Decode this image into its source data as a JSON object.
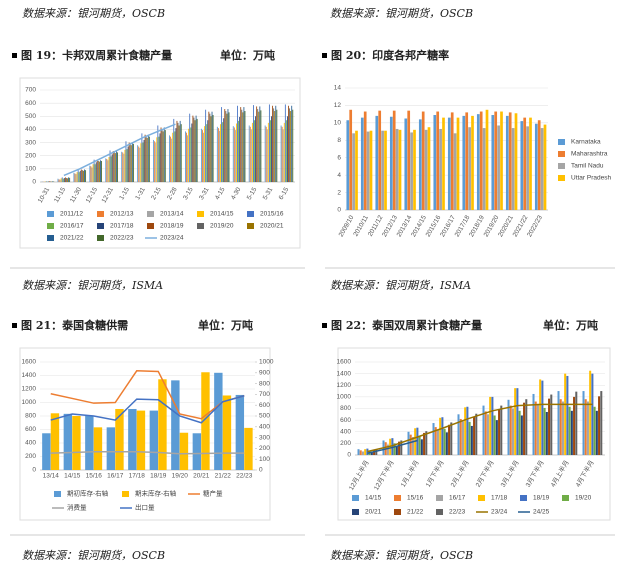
{
  "sources": [
    "数据来源：银河期货，OSCB",
    "数据来源：银河期货，OSCB",
    "数据来源：银河期货，ISMA",
    "数据来源：银河期货，ISMA",
    "数据来源：银河期货，OSCB",
    "数据来源：银河期货，OSCB"
  ],
  "figures": [
    {
      "title": "图 19：卡邦双周累计食糖产量",
      "unit": "单位：万吨"
    },
    {
      "title": "图 20：印度各邦产糖率"
    },
    {
      "title": "图 21：泰国食糖供需",
      "unit": "单位：万吨"
    },
    {
      "title": "图 22：泰国双周累计食糖产量",
      "unit": "单位：万吨"
    }
  ],
  "chart_data": [
    {
      "type": "bar",
      "categories": [
        "10-31",
        "11-15",
        "11-30",
        "12-15",
        "12-31",
        "1-15",
        "1-31",
        "2-15",
        "2-28",
        "3-15",
        "3-31",
        "4-15",
        "4-30",
        "5-15",
        "5-31",
        "6-15"
      ],
      "ylim": [
        0,
        700
      ],
      "yticks": [
        0,
        100,
        200,
        300,
        400,
        500,
        600,
        700
      ],
      "grid": true,
      "legend": "bottom",
      "series": [
        {
          "name": "2011/12",
          "color": "#5b9bd5",
          "values": [
            3,
            25,
            70,
            125,
            180,
            230,
            280,
            320,
            355,
            385,
            405,
            420,
            425,
            430,
            430,
            430
          ]
        },
        {
          "name": "2012/13",
          "color": "#ed7d31",
          "values": [
            2,
            20,
            65,
            120,
            175,
            225,
            270,
            310,
            345,
            375,
            395,
            410,
            415,
            420,
            420,
            420
          ]
        },
        {
          "name": "2013/14",
          "color": "#a5a5a5",
          "values": [
            2,
            18,
            60,
            110,
            165,
            215,
            260,
            300,
            330,
            355,
            375,
            390,
            395,
            400,
            400,
            400
          ]
        },
        {
          "name": "2014/15",
          "color": "#ffc000",
          "values": [
            4,
            28,
            75,
            135,
            190,
            245,
            295,
            340,
            375,
            405,
            425,
            440,
            445,
            450,
            450,
            450
          ]
        },
        {
          "name": "2015/16",
          "color": "#4472c4",
          "values": [
            5,
            35,
            95,
            170,
            240,
            310,
            370,
            430,
            480,
            520,
            550,
            570,
            580,
            585,
            590,
            590
          ]
        },
        {
          "name": "2016/17",
          "color": "#70ad47",
          "values": [
            3,
            25,
            75,
            135,
            195,
            250,
            300,
            345,
            385,
            415,
            440,
            455,
            465,
            470,
            470,
            470
          ]
        },
        {
          "name": "2017/18",
          "color": "#264478",
          "values": [
            4,
            30,
            85,
            150,
            210,
            270,
            320,
            370,
            410,
            445,
            470,
            485,
            495,
            500,
            500,
            500
          ]
        },
        {
          "name": "2018/19",
          "color": "#9e480e",
          "values": [
            5,
            35,
            95,
            165,
            235,
            300,
            360,
            415,
            465,
            505,
            535,
            555,
            570,
            575,
            580,
            580
          ]
        },
        {
          "name": "2019/20",
          "color": "#636363",
          "values": [
            4,
            30,
            90,
            160,
            225,
            290,
            345,
            400,
            450,
            490,
            520,
            540,
            550,
            555,
            560,
            560
          ]
        },
        {
          "name": "2020/21",
          "color": "#997300",
          "values": [
            3,
            28,
            85,
            155,
            220,
            280,
            335,
            385,
            430,
            470,
            500,
            520,
            530,
            535,
            540,
            540
          ]
        },
        {
          "name": "2021/22",
          "color": "#255e91",
          "values": [
            5,
            35,
            95,
            165,
            235,
            300,
            360,
            415,
            465,
            505,
            535,
            555,
            570,
            575,
            580,
            580
          ]
        },
        {
          "name": "2022/23",
          "color": "#43682b",
          "values": [
            4,
            32,
            90,
            160,
            225,
            290,
            345,
            395,
            440,
            480,
            510,
            530,
            540,
            545,
            550,
            550
          ]
        },
        {
          "name": "2023/24",
          "color": "#7cafdd",
          "type": "line",
          "values": [
            null,
            50,
            100,
            160,
            220,
            280,
            340,
            390,
            440,
            null,
            null,
            null,
            null,
            null,
            null,
            null
          ]
        }
      ]
    },
    {
      "type": "bar",
      "categories": [
        "2009/10",
        "2010/11",
        "2011/12",
        "2012/13",
        "2013/14",
        "2014/15",
        "2015/16",
        "2016/17",
        "2017/18",
        "2018/19",
        "2019/20",
        "2020/21",
        "2021/22",
        "2022/23"
      ],
      "ylim": [
        0,
        14
      ],
      "yticks": [
        0,
        2,
        4,
        6,
        8,
        10,
        12,
        14
      ],
      "grid": true,
      "legend": "right",
      "series": [
        {
          "name": "Karnataka",
          "color": "#5b9bd5",
          "values": [
            10.3,
            10.6,
            10.8,
            10.7,
            10.5,
            10.4,
            10.9,
            10.6,
            10.8,
            11,
            10.9,
            10.8,
            10.2,
            9.9
          ]
        },
        {
          "name": "Maharashtra",
          "color": "#ed7d31",
          "values": [
            11.5,
            11.3,
            11.4,
            11.4,
            11.4,
            11.3,
            11.3,
            11.2,
            11.2,
            11.3,
            11.3,
            11.2,
            10.6,
            10.3
          ]
        },
        {
          "name": "Tamil Nadu",
          "color": "#a5a5a5",
          "values": [
            8.8,
            9,
            9.1,
            9.3,
            8.9,
            9.2,
            9.3,
            8.8,
            9.5,
            9.4,
            9.7,
            9.4,
            9.6,
            9.4
          ]
        },
        {
          "name": "Uttar Pradesh",
          "color": "#ffc000",
          "values": [
            9.1,
            9.1,
            9.1,
            9.2,
            9.2,
            9.5,
            10.6,
            10.6,
            10.8,
            11.5,
            11.3,
            11.1,
            10.6,
            9.8
          ]
        }
      ]
    },
    {
      "type": "bar",
      "categories": [
        "13/14",
        "14/15",
        "15/16",
        "16/17",
        "17/18",
        "18/19",
        "19/20",
        "20/21",
        "21/22",
        "22/23"
      ],
      "ylim": [
        0,
        1600
      ],
      "yticks": [
        0,
        200,
        400,
        600,
        800,
        1000,
        1200,
        1400,
        1600
      ],
      "y2lim": [
        0,
        1000
      ],
      "y2ticks": [
        0,
        100,
        200,
        300,
        400,
        500,
        600,
        700,
        800,
        900,
        1000
      ],
      "grid": true,
      "legend": "bottom",
      "series": [
        {
          "name": "期初库存-右轴",
          "color": "#5b9bd5",
          "axis": "y2",
          "values": [
            340,
            520,
            505,
            395,
            565,
            550,
            830,
            340,
            900,
            695
          ]
        },
        {
          "name": "期末库存-右轴",
          "color": "#ffc000",
          "axis": "y2",
          "values": [
            525,
            500,
            395,
            565,
            550,
            840,
            345,
            905,
            690,
            390
          ]
        },
        {
          "name": "糖产量",
          "color": "#ed7d31",
          "type": "line",
          "values": [
            1130,
            1060,
            990,
            1000,
            1470,
            1460,
            830,
            760,
            1010,
            1100
          ]
        },
        {
          "name": "消费量",
          "color": "#a5a5a5",
          "type": "line",
          "values": [
            250,
            260,
            270,
            270,
            270,
            260,
            240,
            245,
            250,
            250
          ]
        },
        {
          "name": "出口量",
          "color": "#4472c4",
          "type": "line",
          "values": [
            740,
            830,
            800,
            740,
            1050,
            1040,
            800,
            700,
            1010,
            1100
          ]
        }
      ]
    },
    {
      "type": "bar",
      "categories": [
        "12月上半月",
        "12月下半月",
        "1月上半月",
        "1月下半月",
        "2月上半月",
        "2月下半月",
        "3月上半月",
        "3月下半月",
        "4月上半月",
        "4月下半月"
      ],
      "ylim": [
        0,
        1600
      ],
      "yticks": [
        0,
        200,
        400,
        600,
        800,
        1000,
        1200,
        1400,
        1600
      ],
      "grid": true,
      "legend": "bottom",
      "series": [
        {
          "name": "14/15",
          "color": "#5b9bd5",
          "values": [
            100,
            250,
            400,
            550,
            700,
            850,
            950,
            1050,
            1100,
            1100
          ]
        },
        {
          "name": "15/16",
          "color": "#ed7d31",
          "values": [
            80,
            220,
            350,
            480,
            620,
            750,
            850,
            920,
            960,
            960
          ]
        },
        {
          "name": "16/17",
          "color": "#a5a5a5",
          "values": [
            60,
            180,
            310,
            440,
            580,
            700,
            800,
            880,
            920,
            920
          ]
        },
        {
          "name": "17/18",
          "color": "#ffc000",
          "values": [
            100,
            280,
            460,
            640,
            820,
            1000,
            1150,
            1300,
            1400,
            1450
          ]
        },
        {
          "name": "18/19",
          "color": "#4472c4",
          "values": [
            110,
            290,
            470,
            650,
            830,
            1000,
            1150,
            1280,
            1360,
            1400
          ]
        },
        {
          "name": "19/20",
          "color": "#70ad47",
          "values": [
            70,
            200,
            330,
            450,
            570,
            680,
            760,
            810,
            830,
            830
          ]
        },
        {
          "name": "20/21",
          "color": "#264478",
          "values": [
            50,
            150,
            270,
            390,
            500,
            600,
            680,
            740,
            760,
            760
          ]
        },
        {
          "name": "21/22",
          "color": "#9e480e",
          "values": [
            80,
            230,
            380,
            520,
            660,
            790,
            900,
            970,
            1000,
            1010
          ]
        },
        {
          "name": "22/23",
          "color": "#636363",
          "values": [
            90,
            250,
            410,
            560,
            710,
            850,
            960,
            1040,
            1090,
            1100
          ]
        },
        {
          "name": "23/24",
          "color": "#997300",
          "type": "line",
          "values": [
            60,
            160,
            310,
            460,
            620,
            760,
            850,
            870,
            870,
            870
          ]
        },
        {
          "name": "24/25",
          "color": "#255e91",
          "type": "line",
          "values": [
            30,
            130,
            250,
            null,
            null,
            null,
            null,
            null,
            null,
            null
          ]
        }
      ]
    }
  ]
}
